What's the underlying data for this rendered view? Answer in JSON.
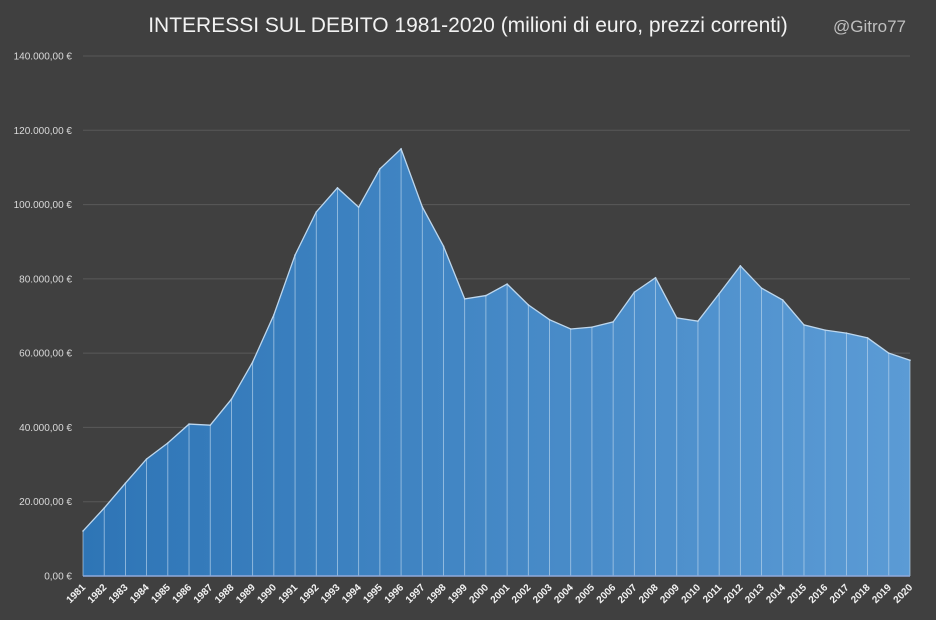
{
  "chart_data": {
    "type": "area",
    "title": "INTERESSI  SUL DEBITO 1981-2020 (milioni di euro, prezzi correnti)",
    "credit": "@Gitro77",
    "xlabel": "",
    "ylabel": "",
    "ylim": [
      0,
      140000
    ],
    "grid": true,
    "yticks": [
      "0,00 €",
      "20.000,00 €",
      "40.000,00 €",
      "60.000,00 €",
      "80.000,00 €",
      "100.000,00 €",
      "120.000,00 €",
      "140.000,00 €"
    ],
    "ytick_values": [
      0,
      20000,
      40000,
      60000,
      80000,
      100000,
      120000,
      140000
    ],
    "categories": [
      "1981",
      "1982",
      "1983",
      "1984",
      "1985",
      "1986",
      "1987",
      "1988",
      "1989",
      "1990",
      "1991",
      "1992",
      "1993",
      "1994",
      "1995",
      "1996",
      "1997",
      "1998",
      "1999",
      "2000",
      "2001",
      "2002",
      "2003",
      "2004",
      "2005",
      "2006",
      "2007",
      "2008",
      "2009",
      "2010",
      "2011",
      "2012",
      "2013",
      "2014",
      "2015",
      "2016",
      "2017",
      "2018",
      "2019",
      "2020"
    ],
    "values": [
      12100,
      18300,
      25000,
      31500,
      35800,
      40900,
      40600,
      47600,
      57600,
      70300,
      86400,
      98000,
      104500,
      99300,
      109600,
      115000,
      99400,
      88800,
      74600,
      75500,
      78600,
      73000,
      69000,
      66500,
      67000,
      68400,
      76400,
      80300,
      69500,
      68600,
      76000,
      83500,
      77500,
      74300,
      67600,
      66200,
      65400,
      64100,
      60000,
      58100
    ],
    "colors": {
      "background": "#404040",
      "fill_start": "#2e75b6",
      "fill_end": "#5b9bd5",
      "line": "#bdd7ee",
      "grid": "#595959"
    }
  }
}
